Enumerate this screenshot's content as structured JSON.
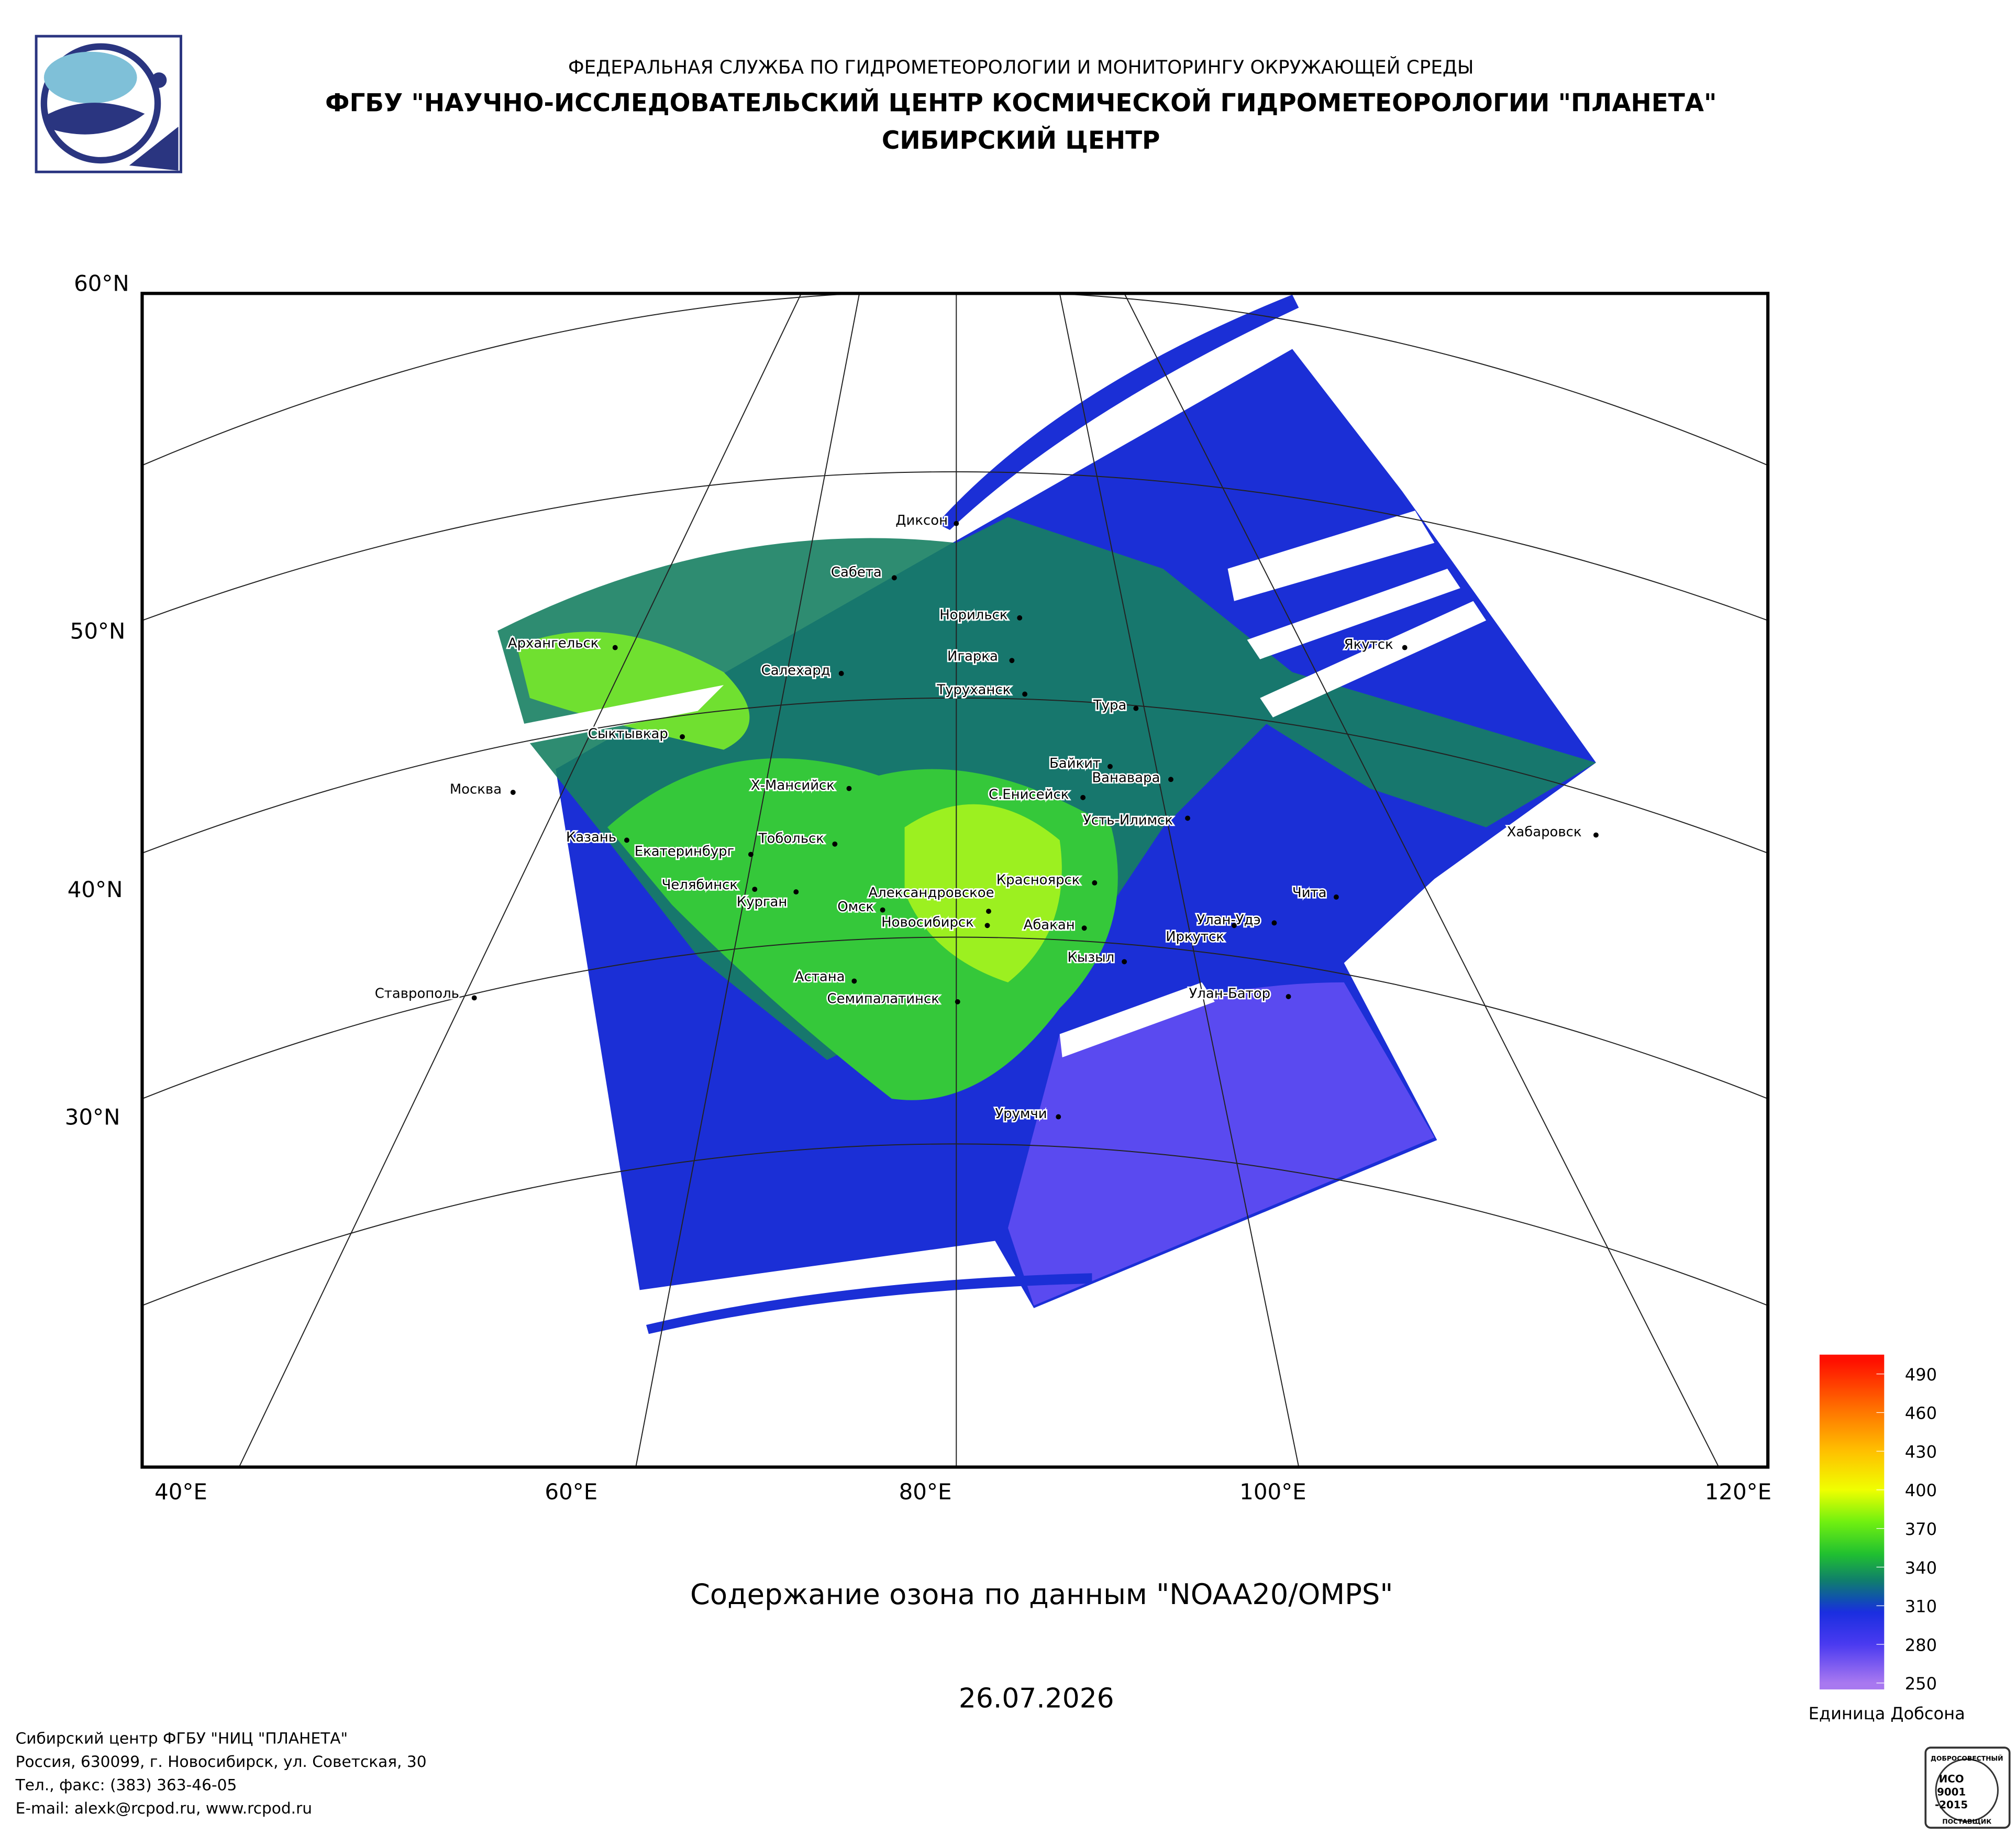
{
  "header": {
    "line1": "ФЕДЕРАЛЬНАЯ СЛУЖБА ПО ГИДРОМЕТЕОРОЛОГИИ И МОНИТОРИНГУ ОКРУЖАЮЩЕЙ СРЕДЫ",
    "line2": "ФГБУ \"НАУЧНО-ИССЛЕДОВАТЕЛЬСКИЙ ЦЕНТР КОСМИЧЕСКОЙ ГИДРОМЕТЕОРОЛОГИИ \"ПЛАНЕТА\"",
    "line3": "СИБИРСКИЙ ЦЕНТР"
  },
  "map": {
    "lat_labels": [
      "60°N",
      "50°N",
      "40°N",
      "30°N"
    ],
    "lon_labels": [
      "40°E",
      "60°E",
      "80°E",
      "100°E",
      "120°E"
    ],
    "cities": [
      "Диксон",
      "Сабета",
      "Норильск",
      "Архангельск",
      "Игарка",
      "Салехард",
      "Туруханск",
      "Тура",
      "Сыктывкар",
      "Байкит",
      "Ванавара",
      "Москва",
      "Х-Мансийск",
      "С.Енисейск",
      "Усть-Илимск",
      "Казань",
      "Тобольск",
      "Екатеринбург",
      "Челябинск",
      "Красноярск",
      "Курган",
      "Александровское",
      "Омск",
      "Чита",
      "Новосибирск",
      "Абакан",
      "Улан-Удэ",
      "Иркутск",
      "Кызыл",
      "Астана",
      "Ставрополь",
      "Улан-Батор",
      "Семипалатинск",
      "Урумчи",
      "Якутск",
      "Хабаровск"
    ]
  },
  "title": "Содержание озона по данным \"NOAA20/OMPS\"",
  "date": "26.07.2026",
  "colorbar": {
    "label": "Единица Добсона",
    "range": [
      245,
      505
    ],
    "ticks": [
      250,
      280,
      310,
      340,
      370,
      400,
      430,
      460,
      490
    ],
    "stops": [
      {
        "value": 250,
        "color": "#a878f0"
      },
      {
        "value": 280,
        "color": "#4a3af0"
      },
      {
        "value": 305,
        "color": "#1a2ee0"
      },
      {
        "value": 315,
        "color": "#1050b0"
      },
      {
        "value": 330,
        "color": "#10806a"
      },
      {
        "value": 350,
        "color": "#20c030"
      },
      {
        "value": 375,
        "color": "#70f010"
      },
      {
        "value": 400,
        "color": "#f0ff00"
      },
      {
        "value": 430,
        "color": "#ffc000"
      },
      {
        "value": 460,
        "color": "#ff7800"
      },
      {
        "value": 500,
        "color": "#ff1000"
      }
    ]
  },
  "footer": [
    "Сибирский центр ФГБУ \"НИЦ \"ПЛАНЕТА\"",
    "Россия, 630099, г. Новосибирск, ул. Советская, 30",
    "Тел., факс: (383) 363-46-05",
    "E-mail: alexk@rcpod.ru, www.rcpod.ru"
  ],
  "iso_stamp": [
    "ДОБРОСОВЕСТНЫЙ",
    "ИСО",
    "9001",
    "-2015",
    "ПОСТАВЩИК"
  ]
}
